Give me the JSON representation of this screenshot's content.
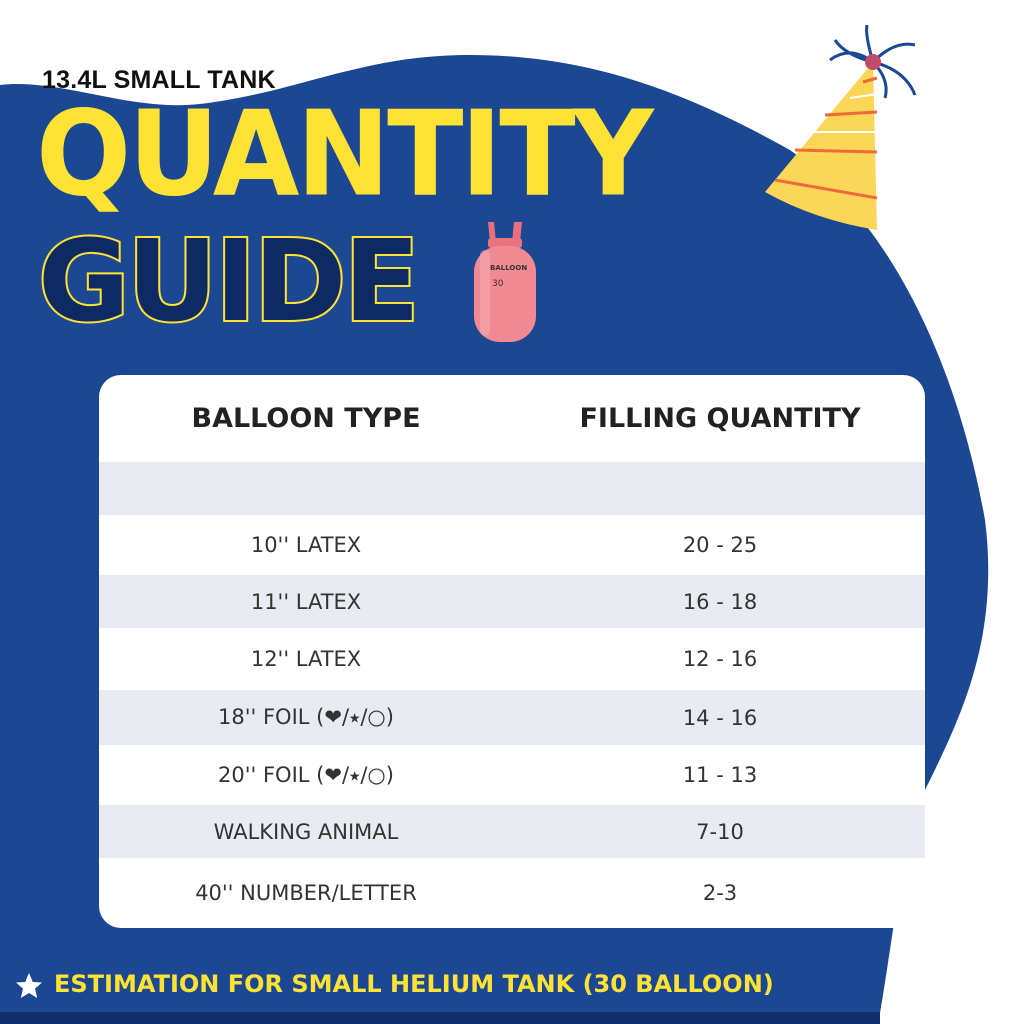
{
  "header": {
    "subtitle": "13.4L SMALL TANK",
    "title_line1": "QUANTITY",
    "title_line2": "GUIDE"
  },
  "colors": {
    "blue": "#1c4793",
    "yellow": "#ffe234",
    "row_alt": "#e9ebf2"
  },
  "images": {
    "tank_logo_text": "BALLOON 30",
    "icons": [
      "helium-tank",
      "party-hat",
      "star-icon"
    ]
  },
  "table": {
    "columns": [
      "BALLOON TYPE",
      "FILLING QUANTITY"
    ],
    "rows": [
      {
        "type": "",
        "quantity": ""
      },
      {
        "type": "10'' LATEX",
        "quantity": "20 - 25"
      },
      {
        "type": "11'' LATEX",
        "quantity": "16 - 18"
      },
      {
        "type": "12'' LATEX",
        "quantity": "12 - 16"
      },
      {
        "type": "18'' FOIL (❤/⭑/○)",
        "quantity": "14 - 16"
      },
      {
        "type": "20'' FOIL (❤/⭑/○)",
        "quantity": "11 - 13"
      },
      {
        "type": "WALKING ANIMAL",
        "quantity": "7-10"
      },
      {
        "type": "40'' NUMBER/LETTER",
        "quantity": "2-3"
      }
    ]
  },
  "footer": {
    "note": "ESTIMATION FOR SMALL HELIUM TANK (30 BALLOON)"
  }
}
